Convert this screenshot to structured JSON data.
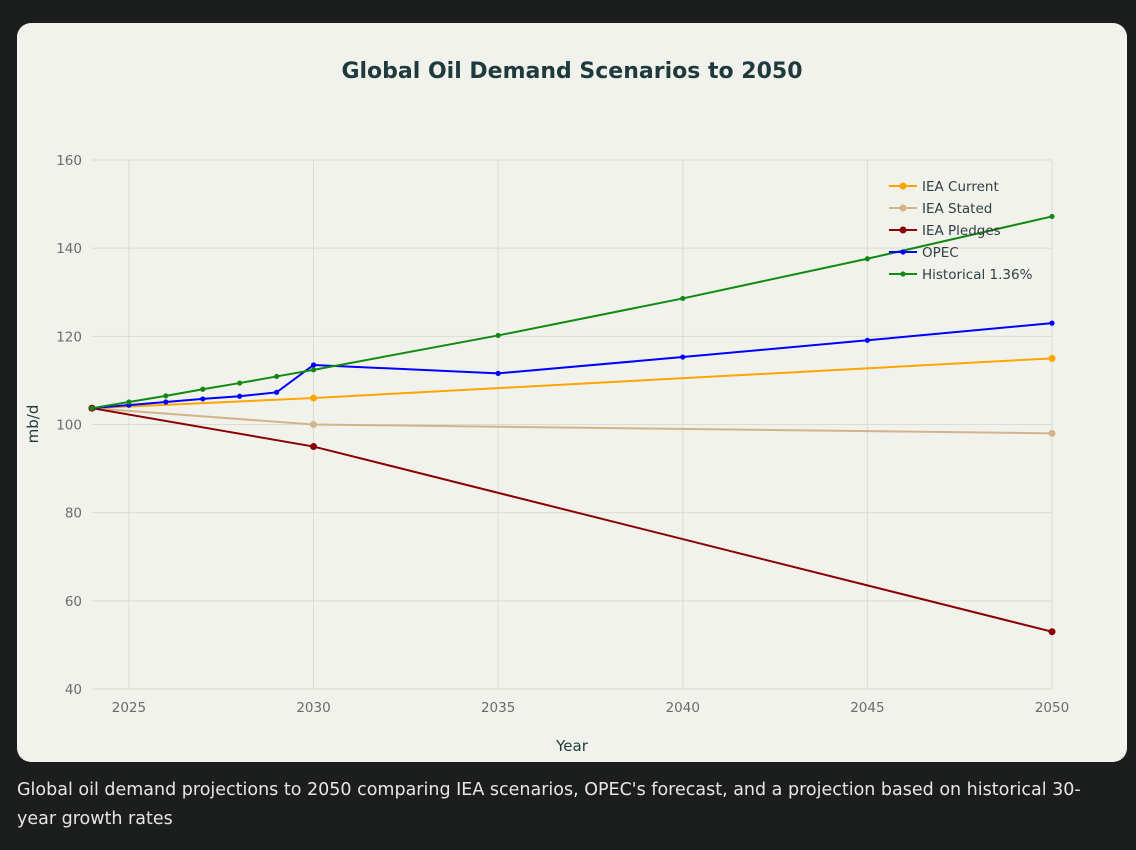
{
  "chart_data": {
    "type": "line",
    "title": "Global Oil Demand Scenarios to 2050",
    "xlabel": "Year",
    "ylabel": "mb/d",
    "xlim": [
      2024,
      2050
    ],
    "ylim": [
      40,
      160
    ],
    "xticks": [
      2025,
      2030,
      2035,
      2040,
      2045,
      2050
    ],
    "yticks": [
      40,
      60,
      80,
      100,
      120,
      140,
      160
    ],
    "grid": true,
    "legend_position": "top-right",
    "series": [
      {
        "name": "IEA Current",
        "color": "#ffa500",
        "x": [
          2024,
          2030,
          2050
        ],
        "y": [
          103.7,
          106,
          115
        ],
        "marker_size": 3.5
      },
      {
        "name": "IEA Stated",
        "color": "#d2b48c",
        "x": [
          2024,
          2030,
          2050
        ],
        "y": [
          103.7,
          100,
          98
        ],
        "marker_size": 3.5
      },
      {
        "name": "IEA Pledges",
        "color": "#8b0000",
        "x": [
          2024,
          2030,
          2050
        ],
        "y": [
          103.7,
          95,
          53
        ],
        "marker_size": 3.5
      },
      {
        "name": "OPEC",
        "color": "#0000ff",
        "x": [
          2024,
          2025,
          2026,
          2027,
          2028,
          2029,
          2030,
          2035,
          2040,
          2045,
          2050
        ],
        "y": [
          103.7,
          104.4,
          105.1,
          105.8,
          106.4,
          107.3,
          113.5,
          111.6,
          115.3,
          119.1,
          123.0
        ],
        "marker_size": 2.6
      },
      {
        "name": "Historical 1.36%",
        "color": "#128a12",
        "x": [
          2024,
          2025,
          2026,
          2027,
          2028,
          2029,
          2030,
          2035,
          2040,
          2045,
          2050
        ],
        "y": [
          103.7,
          105.1,
          106.5,
          108.0,
          109.4,
          110.9,
          112.4,
          120.2,
          128.6,
          137.6,
          147.2
        ],
        "marker_size": 2.6
      }
    ]
  },
  "caption": "Global oil demand projections to 2050 comparing IEA scenarios, OPEC's forecast, and a projection based on historical 30-year growth rates"
}
